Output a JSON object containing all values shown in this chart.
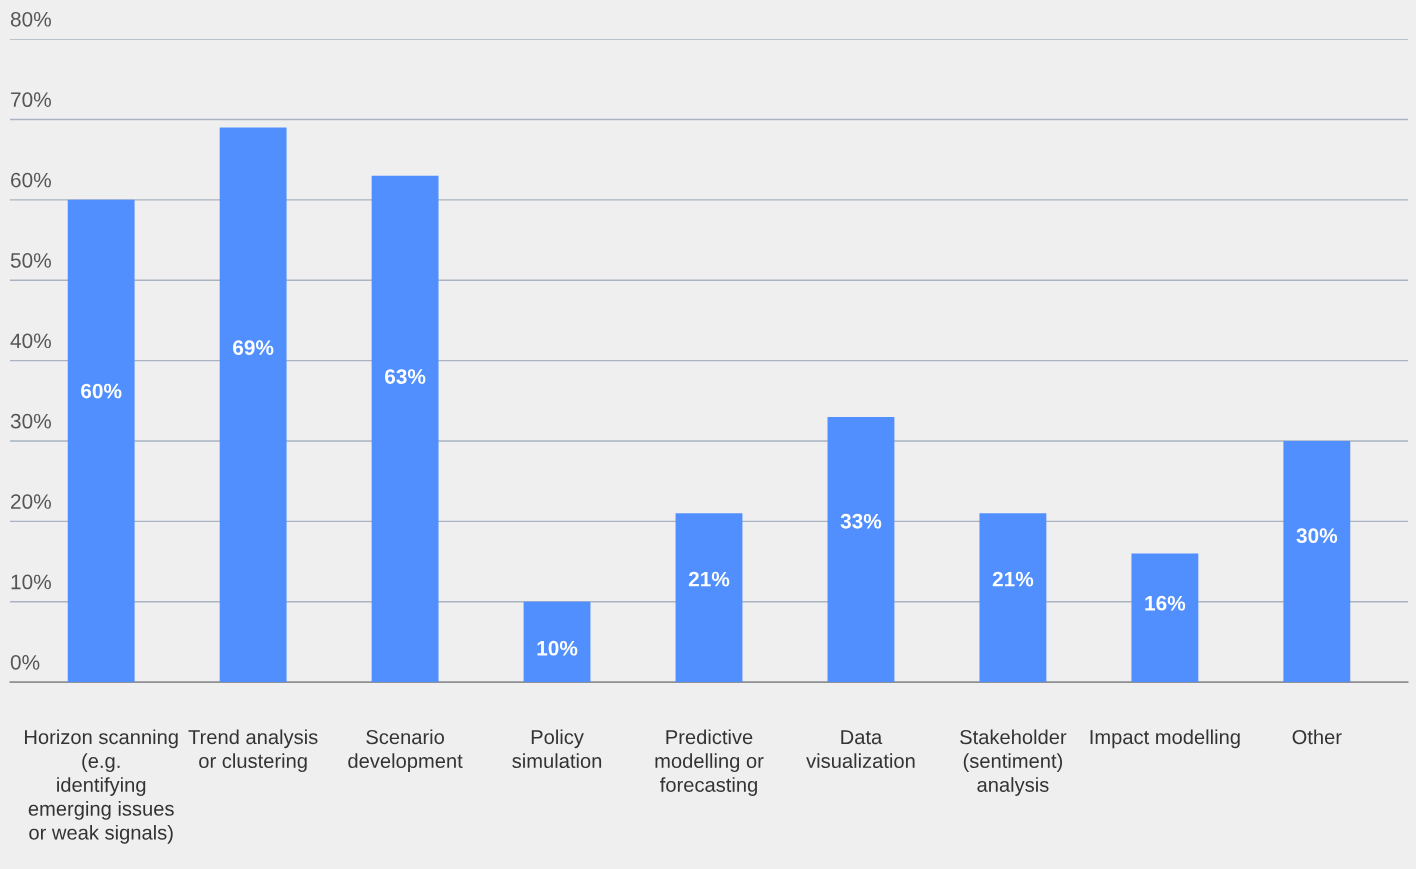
{
  "chart_data": {
    "type": "bar",
    "categories": [
      "Horizon scanning (e.g. identifying emerging issues or weak signals)",
      "Trend analysis or clustering",
      "Scenario development",
      "Policy simulation",
      "Predictive modelling or forecasting",
      "Data visualization",
      "Stakeholder (sentiment) analysis",
      "Impact modelling",
      "Other"
    ],
    "values": [
      60,
      69,
      63,
      10,
      21,
      33,
      21,
      16,
      30
    ],
    "value_labels": [
      "60%",
      "69%",
      "63%",
      "10%",
      "21%",
      "33%",
      "21%",
      "16%",
      "30%"
    ],
    "color": "#528ffe",
    "ylim": [
      0,
      80
    ],
    "yticks": [
      {
        "value": 0,
        "label": "0%"
      },
      {
        "value": 10,
        "label": "10%"
      },
      {
        "value": 20,
        "label": "20%"
      },
      {
        "value": 30,
        "label": "30%"
      },
      {
        "value": 40,
        "label": "40%"
      },
      {
        "value": 50,
        "label": "50%"
      },
      {
        "value": 60,
        "label": "60%"
      },
      {
        "value": 70,
        "label": "70%"
      },
      {
        "value": 80,
        "label": "80%"
      }
    ],
    "grid": "y"
  }
}
